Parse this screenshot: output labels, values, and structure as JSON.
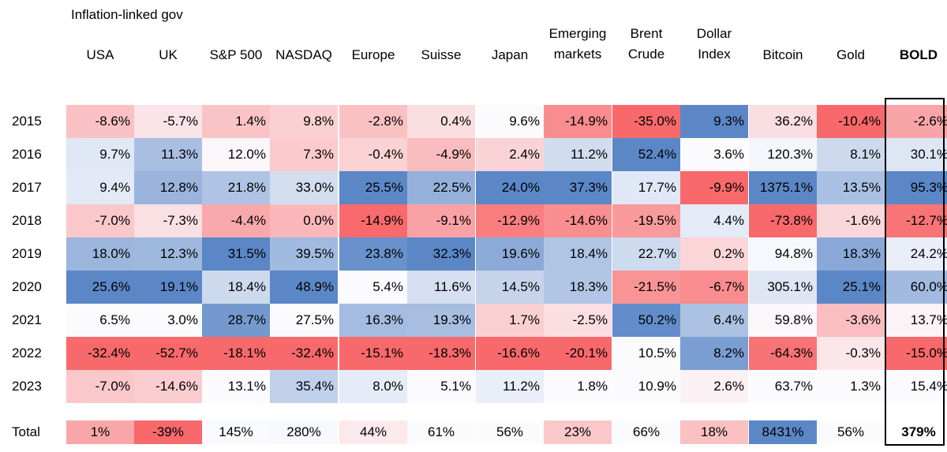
{
  "chart_data": {
    "type": "table",
    "title": "",
    "column_group_label": "Inflation-linked gov",
    "columns": [
      {
        "label": [
          "USA"
        ]
      },
      {
        "label": [
          "UK"
        ]
      },
      {
        "label": [
          "S&P 500"
        ]
      },
      {
        "label": [
          "NASDAQ"
        ]
      },
      {
        "label": [
          "Europe"
        ]
      },
      {
        "label": [
          "Suisse"
        ]
      },
      {
        "label": [
          "Japan"
        ]
      },
      {
        "label": [
          "Emerging",
          "markets"
        ]
      },
      {
        "label": [
          "Brent",
          "Crude"
        ]
      },
      {
        "label": [
          "Dollar",
          "Index"
        ]
      },
      {
        "label": [
          "Bitcoin"
        ]
      },
      {
        "label": [
          "Gold"
        ]
      },
      {
        "label": [
          "BOLD"
        ],
        "bold": true
      }
    ],
    "rows": [
      {
        "year": "2015",
        "values": [
          -8.6,
          -5.7,
          1.4,
          9.8,
          -2.8,
          0.4,
          9.6,
          -14.9,
          -35.0,
          9.3,
          36.2,
          -10.4,
          -2.6
        ]
      },
      {
        "year": "2016",
        "values": [
          9.7,
          11.3,
          12.0,
          7.3,
          -0.4,
          -4.9,
          2.4,
          11.2,
          52.4,
          3.6,
          120.3,
          8.1,
          30.1
        ]
      },
      {
        "year": "2017",
        "values": [
          9.4,
          12.8,
          21.8,
          33.0,
          25.5,
          22.5,
          24.0,
          37.3,
          17.7,
          -9.9,
          1375.1,
          13.5,
          95.3
        ]
      },
      {
        "year": "2018",
        "values": [
          -7.0,
          -7.3,
          -4.4,
          0.0,
          -14.9,
          -9.1,
          -12.9,
          -14.6,
          -19.5,
          4.4,
          -73.8,
          -1.6,
          -12.7
        ]
      },
      {
        "year": "2019",
        "values": [
          18.0,
          12.3,
          31.5,
          39.5,
          23.8,
          32.3,
          19.6,
          18.4,
          22.7,
          0.2,
          94.8,
          18.3,
          24.2
        ]
      },
      {
        "year": "2020",
        "values": [
          25.6,
          19.1,
          18.4,
          48.9,
          5.4,
          11.6,
          14.5,
          18.3,
          -21.5,
          -6.7,
          305.1,
          25.1,
          60.0
        ]
      },
      {
        "year": "2021",
        "values": [
          6.5,
          3.0,
          28.7,
          27.5,
          16.3,
          19.3,
          1.7,
          -2.5,
          50.2,
          6.4,
          59.8,
          -3.6,
          13.7
        ]
      },
      {
        "year": "2022",
        "values": [
          -32.4,
          -52.7,
          -18.1,
          -32.4,
          -15.1,
          -18.3,
          -16.6,
          -20.1,
          10.5,
          8.2,
          -64.3,
          -0.3,
          -15.0
        ]
      },
      {
        "year": "2023",
        "values": [
          -7.0,
          -14.6,
          13.1,
          35.4,
          8.0,
          5.1,
          11.2,
          1.8,
          10.9,
          2.6,
          63.7,
          1.3,
          15.4
        ]
      }
    ],
    "total": {
      "label": "Total",
      "values": [
        1,
        -39,
        145,
        280,
        44,
        61,
        56,
        23,
        66,
        18,
        8431,
        56,
        379
      ]
    },
    "colors": {
      "high": "#5b87c7",
      "mid": "#fbfbfe",
      "low": "#f8696b"
    },
    "color_scale": "per-column diverging (lowest red, highest blue)"
  }
}
